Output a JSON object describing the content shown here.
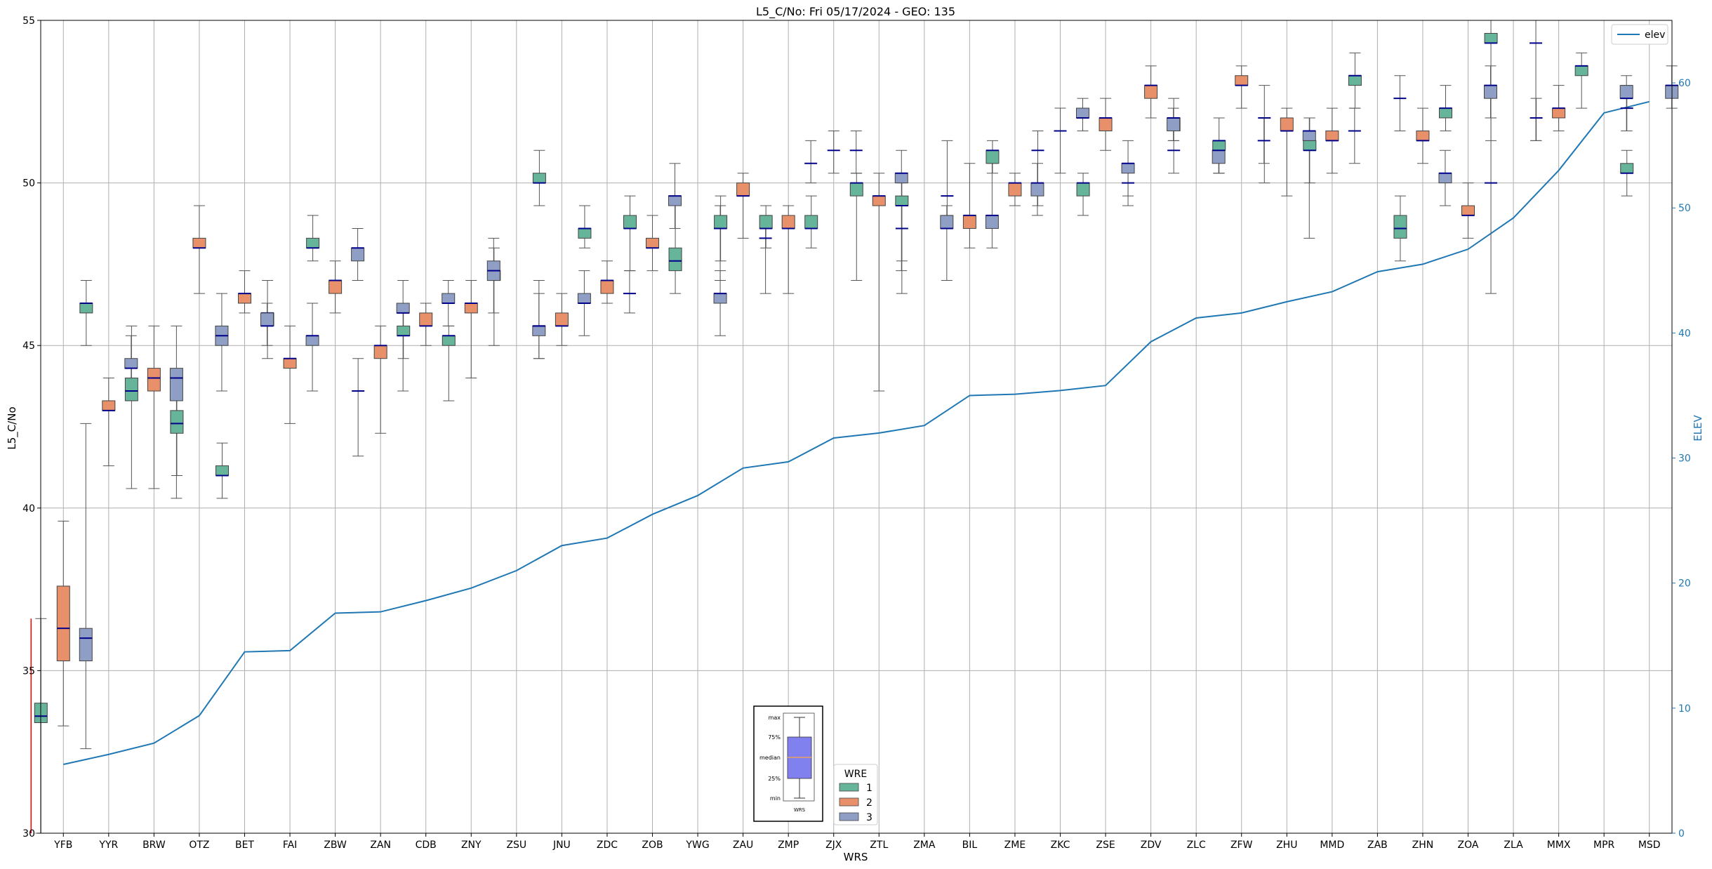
{
  "chart_data": {
    "type": "box",
    "title": "L5_C/No: Fri 05/17/2024 - GEO: 135",
    "xlabel": "WRS",
    "ylabel": "L5_C/No",
    "y2label": "ELEV",
    "ylim": [
      30,
      55
    ],
    "y2lim": [
      0,
      65
    ],
    "yticks": [
      "30",
      "35",
      "40",
      "45",
      "50",
      "55"
    ],
    "y2ticks": [
      "0",
      "10",
      "20",
      "30",
      "40",
      "50",
      "60"
    ],
    "grid": true,
    "colors": {
      "wre1": "#66b59a",
      "wre2": "#e8906a",
      "wre3": "#8f9ec4",
      "elev": "#1f77b4",
      "median": "#00008b",
      "axis2": "#1f77b4",
      "marker": "#ff0000"
    },
    "categories": [
      "YFB",
      "YYR",
      "BRW",
      "OTZ",
      "BET",
      "FAI",
      "ZBW",
      "ZAN",
      "CDB",
      "ZNY",
      "ZSU",
      "JNU",
      "ZDC",
      "ZOB",
      "YWG",
      "ZAU",
      "ZMP",
      "ZJX",
      "ZTL",
      "ZMA",
      "BIL",
      "ZME",
      "ZKC",
      "ZSE",
      "ZDV",
      "ZLC",
      "ZFW",
      "ZHU",
      "MMD",
      "ZAB",
      "ZHN",
      "ZOA",
      "ZLA",
      "MMX",
      "MPR",
      "MSD"
    ],
    "elev_series": {
      "name": "elev",
      "values": [
        5.5,
        6.3,
        7.2,
        9.4,
        14.5,
        14.6,
        17.6,
        17.7,
        18.6,
        19.6,
        21.0,
        23.0,
        23.6,
        25.5,
        27.0,
        29.2,
        29.7,
        31.6,
        32.0,
        32.6,
        35.0,
        35.1,
        35.4,
        35.8,
        39.3,
        41.2,
        41.6,
        42.5,
        43.3,
        44.9,
        45.5,
        46.7,
        49.2,
        53.0,
        57.6,
        58.5
      ]
    },
    "box_series": [
      {
        "name": "1",
        "boxes": [
          {
            "cat": "YFB",
            "min": 30,
            "q1": 33.4,
            "med": 33.6,
            "q3": 34.0,
            "max": 36.6
          },
          {
            "cat": "YYR",
            "min": 45.0,
            "q1": 46.0,
            "med": 46.3,
            "q3": 46.3,
            "max": 47.0
          },
          {
            "cat": "BRW",
            "min": 40.6,
            "q1": 43.3,
            "med": 43.6,
            "q3": 44.0,
            "max": 45.6
          },
          {
            "cat": "OTZ",
            "min": 41.0,
            "q1": 42.3,
            "med": 42.6,
            "q3": 43.0,
            "max": 44.0
          },
          {
            "cat": "BET",
            "min": 40.3,
            "q1": 41.0,
            "med": 41.0,
            "q3": 41.3,
            "max": 42.0
          },
          {
            "cat": "FAI",
            "min": 44.6,
            "q1": 45.6,
            "med": 46.0,
            "q3": 46.0,
            "max": 47.0
          },
          {
            "cat": "ZBW",
            "min": 47.6,
            "q1": 48.0,
            "med": 48.0,
            "q3": 48.3,
            "max": 49.0
          },
          {
            "cat": "CDB",
            "min": 44.6,
            "q1": 45.3,
            "med": 45.3,
            "q3": 45.6,
            "max": 46.0
          },
          {
            "cat": "ZNY",
            "min": 43.3,
            "q1": 45.0,
            "med": 45.3,
            "q3": 45.3,
            "max": 45.6
          },
          {
            "cat": "ZSU",
            "min": 45.0,
            "q1": 47.0,
            "med": 47.3,
            "q3": 47.3,
            "max": 48.0
          },
          {
            "cat": "JNU",
            "min": 49.3,
            "q1": 50.0,
            "med": 50.0,
            "q3": 50.3,
            "max": 51.0
          },
          {
            "cat": "ZDC",
            "min": 48.0,
            "q1": 48.3,
            "med": 48.6,
            "q3": 48.6,
            "max": 49.3
          },
          {
            "cat": "ZOB",
            "min": 47.3,
            "q1": 48.6,
            "med": 48.6,
            "q3": 49.0,
            "max": 49.6
          },
          {
            "cat": "YWG",
            "min": 46.6,
            "q1": 47.3,
            "med": 47.6,
            "q3": 48.0,
            "max": 49.3
          },
          {
            "cat": "ZAU",
            "min": 47.6,
            "q1": 48.6,
            "med": 48.6,
            "q3": 49.0,
            "max": 49.6
          },
          {
            "cat": "ZMP",
            "min": 48.0,
            "q1": 48.6,
            "med": 48.6,
            "q3": 49.0,
            "max": 49.3
          },
          {
            "cat": "ZJX",
            "min": 48.0,
            "q1": 48.6,
            "med": 48.6,
            "q3": 49.0,
            "max": 49.6
          },
          {
            "cat": "ZTL",
            "min": 47.0,
            "q1": 49.6,
            "med": 50.0,
            "q3": 50.0,
            "max": 50.3
          },
          {
            "cat": "ZMA",
            "min": 47.6,
            "q1": 49.3,
            "med": 49.3,
            "q3": 49.6,
            "max": 50.0
          },
          {
            "cat": "ZME",
            "min": 50.3,
            "q1": 50.6,
            "med": 51.0,
            "q3": 51.0,
            "max": 51.3
          },
          {
            "cat": "ZSE",
            "min": 49.0,
            "q1": 49.6,
            "med": 50.0,
            "q3": 50.0,
            "max": 50.3
          },
          {
            "cat": "ZLC",
            "min": 51.3,
            "q1": 51.6,
            "med": 52.0,
            "q3": 52.0,
            "max": 52.6
          },
          {
            "cat": "ZFW",
            "min": 50.3,
            "q1": 51.0,
            "med": 51.3,
            "q3": 51.3,
            "max": 52.0
          },
          {
            "cat": "MMD",
            "min": 50.0,
            "q1": 51.0,
            "med": 51.0,
            "q3": 51.3,
            "max": 52.0
          },
          {
            "cat": "ZAB",
            "min": 52.3,
            "q1": 53.0,
            "med": 53.3,
            "q3": 53.3,
            "max": 54.0
          },
          {
            "cat": "ZHN",
            "min": 47.6,
            "q1": 48.3,
            "med": 48.6,
            "q3": 49.0,
            "max": 49.6
          },
          {
            "cat": "ZOA",
            "min": 51.6,
            "q1": 52.0,
            "med": 52.3,
            "q3": 52.3,
            "max": 53.0
          },
          {
            "cat": "ZLA",
            "min": 51.3,
            "q1": 54.3,
            "med": 54.3,
            "q3": 54.6,
            "max": 55.0
          },
          {
            "cat": "MPR",
            "min": 52.3,
            "q1": 53.3,
            "med": 53.6,
            "q3": 53.6,
            "max": 54.0
          },
          {
            "cat": "MSD",
            "min": 49.6,
            "q1": 50.3,
            "med": 50.3,
            "q3": 50.6,
            "max": 51.0
          }
        ]
      },
      {
        "name": "2",
        "boxes": [
          {
            "cat": "YFB",
            "min": 33.3,
            "q1": 35.3,
            "med": 36.3,
            "q3": 37.6,
            "max": 39.6
          },
          {
            "cat": "YYR",
            "min": 41.3,
            "q1": 43.0,
            "med": 43.0,
            "q3": 43.3,
            "max": 44.0
          },
          {
            "cat": "BRW",
            "min": 40.6,
            "q1": 43.6,
            "med": 44.0,
            "q3": 44.3,
            "max": 45.6
          },
          {
            "cat": "OTZ",
            "min": 46.6,
            "q1": 48.0,
            "med": 48.0,
            "q3": 48.3,
            "max": 49.3
          },
          {
            "cat": "BET",
            "min": 46.0,
            "q1": 46.3,
            "med": 46.6,
            "q3": 46.6,
            "max": 47.3
          },
          {
            "cat": "FAI",
            "min": 42.6,
            "q1": 44.3,
            "med": 44.6,
            "q3": 44.6,
            "max": 45.6
          },
          {
            "cat": "ZBW",
            "min": 46.0,
            "q1": 46.6,
            "med": 47.0,
            "q3": 47.0,
            "max": 47.6
          },
          {
            "cat": "ZAN",
            "min": 42.3,
            "q1": 44.6,
            "med": 45.0,
            "q3": 45.0,
            "max": 45.6
          },
          {
            "cat": "CDB",
            "min": 45.0,
            "q1": 45.6,
            "med": 45.6,
            "q3": 46.0,
            "max": 46.3
          },
          {
            "cat": "ZNY",
            "min": 44.0,
            "q1": 46.0,
            "med": 46.3,
            "q3": 46.3,
            "max": 47.0
          },
          {
            "cat": "JNU",
            "min": 45.0,
            "q1": 45.6,
            "med": 45.6,
            "q3": 46.0,
            "max": 46.6
          },
          {
            "cat": "ZDC",
            "min": 46.3,
            "q1": 46.6,
            "med": 47.0,
            "q3": 47.0,
            "max": 47.6
          },
          {
            "cat": "ZOB",
            "min": 47.3,
            "q1": 48.0,
            "med": 48.0,
            "q3": 48.3,
            "max": 49.0
          },
          {
            "cat": "ZAU",
            "min": 48.3,
            "q1": 49.6,
            "med": 49.6,
            "q3": 50.0,
            "max": 50.3
          },
          {
            "cat": "ZMP",
            "min": 46.6,
            "q1": 48.6,
            "med": 48.6,
            "q3": 49.0,
            "max": 49.3
          },
          {
            "cat": "ZTL",
            "min": 43.6,
            "q1": 49.3,
            "med": 49.6,
            "q3": 49.6,
            "max": 50.3
          },
          {
            "cat": "BIL",
            "min": 48.0,
            "q1": 48.6,
            "med": 49.0,
            "q3": 49.0,
            "max": 50.6
          },
          {
            "cat": "ZME",
            "min": 49.3,
            "q1": 49.6,
            "med": 50.0,
            "q3": 50.0,
            "max": 50.3
          },
          {
            "cat": "ZSE",
            "min": 51.0,
            "q1": 51.6,
            "med": 52.0,
            "q3": 52.0,
            "max": 52.6
          },
          {
            "cat": "ZDV",
            "min": 52.0,
            "q1": 52.6,
            "med": 53.0,
            "q3": 53.0,
            "max": 53.6
          },
          {
            "cat": "ZFW",
            "min": 52.3,
            "q1": 53.0,
            "med": 53.0,
            "q3": 53.3,
            "max": 53.6
          },
          {
            "cat": "ZHU",
            "min": 49.6,
            "q1": 51.6,
            "med": 51.6,
            "q3": 52.0,
            "max": 52.3
          },
          {
            "cat": "MMD",
            "min": 50.3,
            "q1": 51.3,
            "med": 51.3,
            "q3": 51.6,
            "max": 52.3
          },
          {
            "cat": "ZHN",
            "min": 50.6,
            "q1": 51.3,
            "med": 51.3,
            "q3": 51.6,
            "max": 52.3
          },
          {
            "cat": "ZOA",
            "min": 48.3,
            "q1": 49.0,
            "med": 49.0,
            "q3": 49.3,
            "max": 50.0
          },
          {
            "cat": "MMX",
            "min": 51.6,
            "q1": 52.0,
            "med": 52.3,
            "q3": 52.3,
            "max": 53.0
          }
        ]
      },
      {
        "name": "3",
        "boxes": [
          {
            "cat": "YFB",
            "min": 32.6,
            "q1": 35.3,
            "med": 36.0,
            "q3": 36.3,
            "max": 42.6
          },
          {
            "cat": "YYR",
            "min": 43.3,
            "q1": 44.3,
            "med": 44.3,
            "q3": 44.6,
            "max": 45.3
          },
          {
            "cat": "BRW",
            "min": 40.3,
            "q1": 43.3,
            "med": 44.0,
            "q3": 44.3,
            "max": 45.6
          },
          {
            "cat": "OTZ",
            "min": 43.6,
            "q1": 45.0,
            "med": 45.3,
            "q3": 45.6,
            "max": 46.6
          },
          {
            "cat": "BET",
            "min": 45.0,
            "q1": 45.6,
            "med": 45.6,
            "q3": 46.0,
            "max": 46.3
          },
          {
            "cat": "FAI",
            "min": 43.6,
            "q1": 45.0,
            "med": 45.3,
            "q3": 45.3,
            "max": 46.3
          },
          {
            "cat": "ZBW",
            "min": 47.0,
            "q1": 47.6,
            "med": 48.0,
            "q3": 48.0,
            "max": 48.6
          },
          {
            "cat": "ZAN",
            "min": 43.6,
            "q1": 46.0,
            "med": 46.0,
            "q3": 46.3,
            "max": 47.0
          },
          {
            "cat": "CDB",
            "min": 45.6,
            "q1": 46.3,
            "med": 46.3,
            "q3": 46.6,
            "max": 47.0
          },
          {
            "cat": "ZNY",
            "min": 46.0,
            "q1": 47.0,
            "med": 47.3,
            "q3": 47.6,
            "max": 48.3
          },
          {
            "cat": "ZSU",
            "min": 44.6,
            "q1": 45.3,
            "med": 45.6,
            "q3": 45.6,
            "max": 47.0
          },
          {
            "cat": "JNU",
            "min": 45.3,
            "q1": 46.3,
            "med": 46.3,
            "q3": 46.6,
            "max": 47.3
          },
          {
            "cat": "ZOB",
            "min": 48.6,
            "q1": 49.3,
            "med": 49.6,
            "q3": 49.6,
            "max": 50.6
          },
          {
            "cat": "YWG",
            "min": 45.3,
            "q1": 46.3,
            "med": 46.6,
            "q3": 46.6,
            "max": 47.3
          },
          {
            "cat": "ZTL",
            "min": 47.3,
            "q1": 50.0,
            "med": 50.3,
            "q3": 50.3,
            "max": 51.0
          },
          {
            "cat": "ZMA",
            "min": 47.0,
            "q1": 48.6,
            "med": 48.6,
            "q3": 49.0,
            "max": 49.3
          },
          {
            "cat": "BIL",
            "min": 48.0,
            "q1": 48.6,
            "med": 49.0,
            "q3": 49.0,
            "max": 50.6
          },
          {
            "cat": "ZME",
            "min": 49.0,
            "q1": 49.6,
            "med": 50.0,
            "q3": 50.0,
            "max": 50.6
          },
          {
            "cat": "ZKC",
            "min": 51.6,
            "q1": 52.0,
            "med": 52.0,
            "q3": 52.3,
            "max": 52.6
          },
          {
            "cat": "ZSE",
            "min": 49.6,
            "q1": 50.3,
            "med": 50.6,
            "q3": 50.6,
            "max": 51.3
          },
          {
            "cat": "ZDV",
            "min": 51.3,
            "q1": 51.6,
            "med": 52.0,
            "q3": 52.0,
            "max": 52.3
          },
          {
            "cat": "ZLC",
            "min": 50.3,
            "q1": 50.6,
            "med": 51.0,
            "q3": 51.0,
            "max": 51.3
          },
          {
            "cat": "ZHU",
            "min": 48.3,
            "q1": 51.3,
            "med": 51.6,
            "q3": 51.6,
            "max": 52.0
          },
          {
            "cat": "ZHN",
            "min": 49.3,
            "q1": 50.0,
            "med": 50.3,
            "q3": 50.3,
            "max": 51.0
          },
          {
            "cat": "ZOA",
            "min": 52.0,
            "q1": 52.6,
            "med": 53.0,
            "q3": 53.0,
            "max": 53.6
          },
          {
            "cat": "MPR",
            "min": 51.6,
            "q1": 52.6,
            "med": 52.6,
            "q3": 53.0,
            "max": 53.3
          },
          {
            "cat": "MSD",
            "min": 52.3,
            "q1": 52.6,
            "med": 53.0,
            "q3": 53.0,
            "max": 53.6
          }
        ]
      }
    ],
    "median_lines": [
      {
        "cat": "ZAN",
        "offset": -1,
        "min": 41.6,
        "max": 44.6,
        "med": 43.6
      },
      {
        "cat": "ZSU",
        "offset": 1,
        "min": 44.6,
        "max": 46.6,
        "med": 45.6
      },
      {
        "cat": "ZDC",
        "offset": 1,
        "min": 46.0,
        "max": 47.3,
        "med": 46.6
      },
      {
        "cat": "YWG",
        "offset": 1,
        "min": 47.0,
        "max": 49.3,
        "med": 48.6
      },
      {
        "cat": "ZAU",
        "offset": 1,
        "min": 46.6,
        "max": 49.0,
        "med": 48.3
      },
      {
        "cat": "ZMP",
        "offset": 1,
        "min": 50.0,
        "max": 51.3,
        "med": 50.6
      },
      {
        "cat": "ZJX",
        "offset": 0,
        "min": 50.3,
        "max": 51.6,
        "med": 51.0
      },
      {
        "cat": "ZJX",
        "offset": 1,
        "min": 50.3,
        "max": 51.6,
        "med": 51.0
      },
      {
        "cat": "ZMA",
        "offset": -1,
        "min": 46.6,
        "max": 49.3,
        "med": 48.6
      },
      {
        "cat": "BIL",
        "offset": -1,
        "min": 49.0,
        "max": 51.3,
        "med": 49.6
      },
      {
        "cat": "ZKC",
        "offset": -1,
        "min": 49.3,
        "max": 51.6,
        "med": 51.0
      },
      {
        "cat": "ZKC",
        "offset": 0,
        "min": 50.3,
        "max": 52.3,
        "med": 51.6
      },
      {
        "cat": "ZSE",
        "offset": 1,
        "min": 49.3,
        "max": 50.6,
        "med": 50.0
      },
      {
        "cat": "ZLC",
        "offset": -1,
        "min": 50.3,
        "max": 51.6,
        "med": 51.0
      },
      {
        "cat": "ZFW",
        "offset": 1,
        "min": 50.6,
        "max": 52.0,
        "med": 51.3
      },
      {
        "cat": "ZHU",
        "offset": -1,
        "min": 50.0,
        "max": 53.0,
        "med": 52.0
      },
      {
        "cat": "MMD",
        "offset": 1,
        "min": 50.6,
        "max": 52.3,
        "med": 51.6
      },
      {
        "cat": "ZAB",
        "offset": 1,
        "min": 51.6,
        "max": 53.3,
        "med": 52.6
      },
      {
        "cat": "ZLA",
        "offset": -1,
        "min": 46.6,
        "max": 52.0,
        "med": 50.0
      },
      {
        "cat": "ZLA",
        "offset": 1,
        "min": 51.3,
        "max": 55.0,
        "med": 54.3
      },
      {
        "cat": "MMX",
        "offset": -1,
        "min": 51.3,
        "max": 52.6,
        "med": 52.0
      },
      {
        "cat": "MSD",
        "offset": -1,
        "min": 51.6,
        "max": 53.0,
        "med": 52.3
      }
    ],
    "red_marker": {
      "cat": "YFB",
      "min": 30.0,
      "max": 36.6
    },
    "legend_elev": {
      "label": "elev",
      "placement": "top-right"
    },
    "legend_wre": {
      "title": "WRE",
      "items": [
        "1",
        "2",
        "3"
      ],
      "placement": "bottom-center"
    },
    "box_guide": {
      "labels": [
        "max",
        "75%",
        "median",
        "25%",
        "min"
      ],
      "xlabel": "WRS"
    }
  }
}
